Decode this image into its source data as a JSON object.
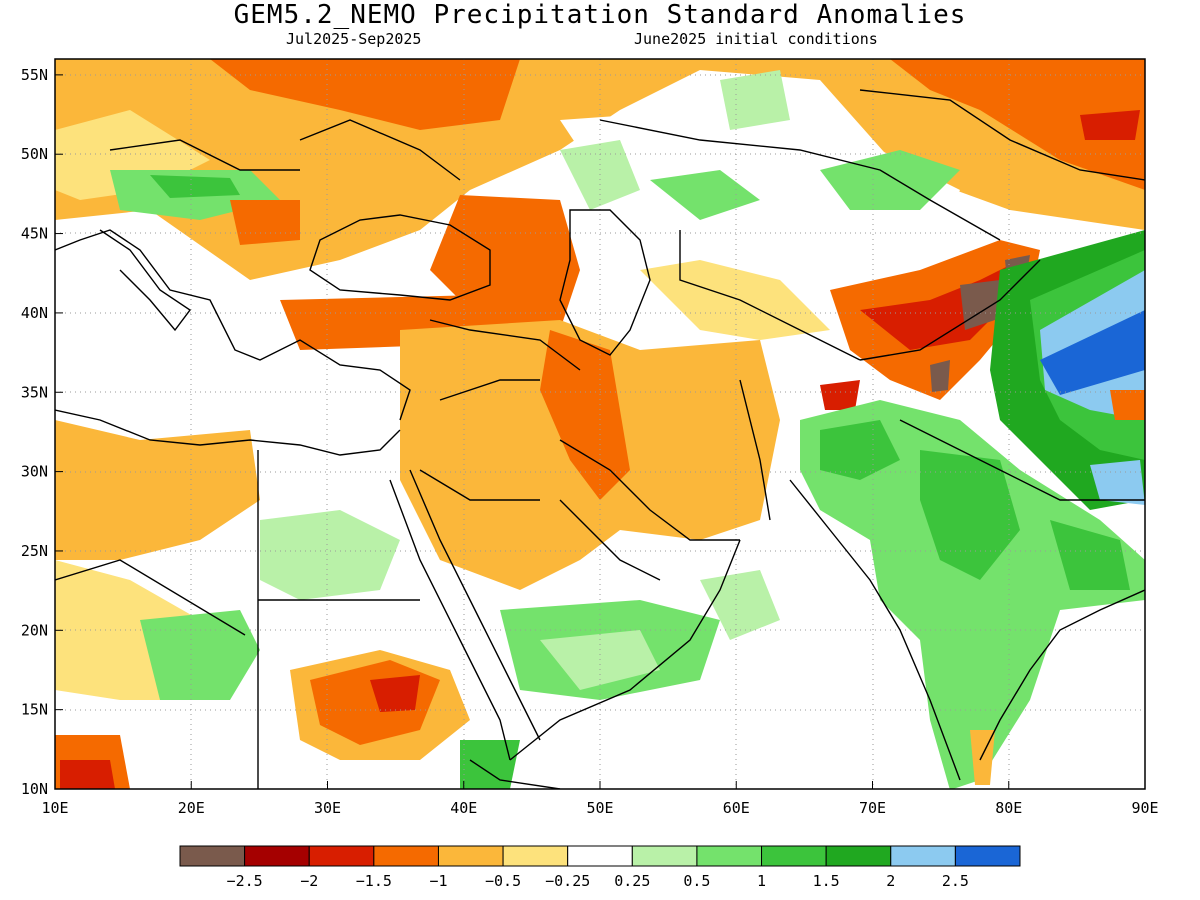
{
  "title": "GEM5.2_NEMO Precipitation Standard Anomalies",
  "subtitle_period": "Jul2025-Sep2025",
  "subtitle_ic": "June2025 initial conditions",
  "axes": {
    "lon_labels": [
      "10E",
      "20E",
      "30E",
      "40E",
      "50E",
      "60E",
      "70E",
      "80E",
      "90E"
    ],
    "lat_labels": [
      "55N",
      "50N",
      "45N",
      "40N",
      "35N",
      "30N",
      "25N",
      "20N",
      "15N",
      "10N"
    ],
    "lon_range": [
      10,
      90
    ],
    "lat_range": [
      10,
      56
    ],
    "grid": "dotted"
  },
  "colorbar": {
    "colors": [
      "#7a5a4c",
      "#a50000",
      "#d81e00",
      "#f56a00",
      "#fbb73a",
      "#fde27c",
      "#ffffff",
      "#b9f1a8",
      "#74e26c",
      "#3cc43c",
      "#20a820",
      "#8ccaf0",
      "#1a66d6"
    ],
    "labels": [
      "-2.5",
      "-2",
      "-1.5",
      "-1",
      "-0.5",
      "-0.25",
      "0.25",
      "0.5",
      "1",
      "1.5",
      "2",
      "2.5"
    ]
  },
  "colors": {
    "coast": "#000000",
    "grid": "#9a9a9a"
  }
}
